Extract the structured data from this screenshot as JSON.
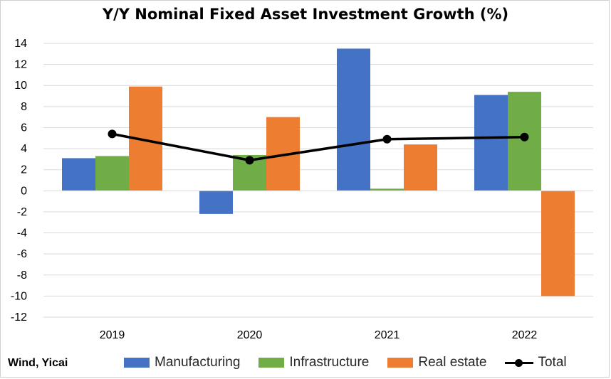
{
  "chart_data": {
    "type": "bar",
    "title": "Y/Y Nominal Fixed Asset Investment Growth (%)",
    "categories": [
      "2019",
      "2020",
      "2021",
      "2022"
    ],
    "series": [
      {
        "name": "Manufacturing",
        "type": "bar",
        "color": "#4472C4",
        "values": [
          3.1,
          -2.2,
          13.5,
          9.1
        ]
      },
      {
        "name": "Infrastructure",
        "type": "bar",
        "color": "#70AD47",
        "values": [
          3.3,
          3.4,
          0.2,
          9.4
        ]
      },
      {
        "name": "Real estate",
        "type": "bar",
        "color": "#ED7D31",
        "values": [
          9.9,
          7.0,
          4.4,
          -10.0
        ]
      },
      {
        "name": "Total",
        "type": "line",
        "color": "#000000",
        "values": [
          5.4,
          2.9,
          4.9,
          5.1
        ]
      }
    ],
    "ylim": [
      -12,
      14
    ],
    "yticks": [
      14,
      12,
      10,
      8,
      6,
      4,
      2,
      0,
      -2,
      -4,
      -6,
      -8,
      -10,
      -12
    ],
    "xlabel": "",
    "ylabel": "",
    "grid": true,
    "legend_position": "bottom"
  },
  "source_note": "Wind, Yicai"
}
